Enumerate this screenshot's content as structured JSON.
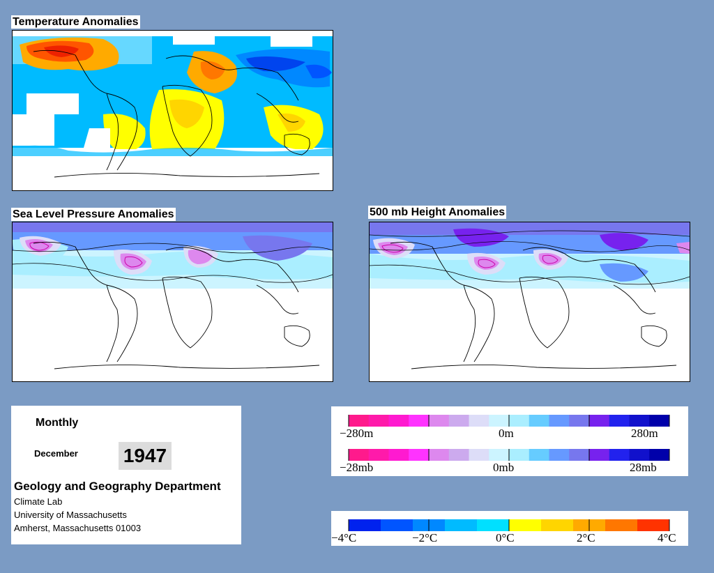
{
  "maps": {
    "temperature": {
      "title": "Temperature Anomalies"
    },
    "slp": {
      "title": "Sea Level Pressure Anomalies"
    },
    "height500": {
      "title": "500 mb Height Anomalies"
    }
  },
  "info": {
    "period": "Monthly",
    "month": "December",
    "year": "1947",
    "department": "Geology and Geography Department",
    "lab": "Climate Lab",
    "university": "University of Massachusetts",
    "address": "Amherst, Massachusetts 01003"
  },
  "legends": {
    "height": {
      "min_label": "−280m",
      "mid_label": "0m",
      "max_label": "280m"
    },
    "pressure": {
      "min_label": "−28mb",
      "mid_label": "0mb",
      "max_label": "28mb"
    },
    "temperature": {
      "labels": [
        "−4°C",
        "−2°C",
        "0°C",
        "2°C",
        "4°C"
      ]
    }
  },
  "colors": {
    "background": "#7b9bc4",
    "pressure_scale": [
      "#ff1a8c",
      "#ff1aaa",
      "#ff1ad0",
      "#ff33ff",
      "#dd88ee",
      "#ccaaee",
      "#ddddf8",
      "#ccf4ff",
      "#aaeeff",
      "#66ccff",
      "#6699ff",
      "#7777ee",
      "#7722ee",
      "#2222ee",
      "#1111cc",
      "#0000aa"
    ],
    "temperature_scale": [
      "#0022ee",
      "#0055ff",
      "#0088ff",
      "#00bbff",
      "#00e0ff",
      "#ffff00",
      "#ffd500",
      "#ffaa00",
      "#ff7700",
      "#ff3300"
    ]
  }
}
